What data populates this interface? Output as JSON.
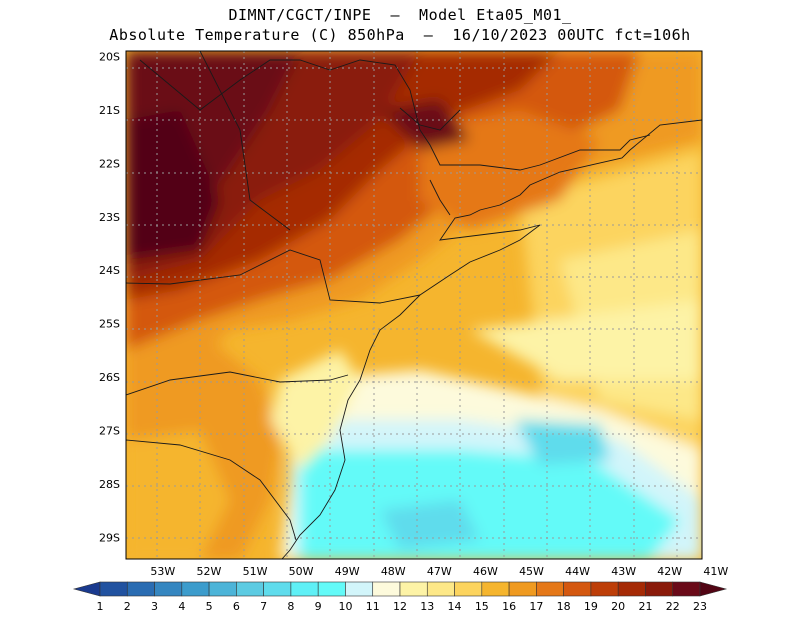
{
  "header": {
    "line1": "DIMNT/CGCT/INPE  –  Model Eta05_M01_",
    "line2": "Absolute Temperature (C) 850hPa  –  16/10/2023 00UTC fct=106h"
  },
  "map": {
    "lat_labels": [
      "20S",
      "21S",
      "22S",
      "23S",
      "24S",
      "25S",
      "26S",
      "27S",
      "28S",
      "29S"
    ],
    "lon_labels": [
      "53W",
      "52W",
      "51W",
      "50W",
      "49W",
      "48W",
      "47W",
      "46W",
      "45W",
      "44W",
      "43W",
      "42W",
      "41W"
    ],
    "lat_range": [
      -29.4,
      -19.9
    ],
    "lon_range": [
      -53.8,
      -41.3
    ]
  },
  "colorbar": {
    "labels": [
      "1",
      "2",
      "3",
      "4",
      "5",
      "6",
      "7",
      "8",
      "9",
      "10",
      "11",
      "12",
      "13",
      "14",
      "15",
      "16",
      "17",
      "18",
      "19",
      "20",
      "21",
      "22",
      "23"
    ],
    "colors": [
      "#1a3a8e",
      "#2152a0",
      "#2a6cb2",
      "#3586c0",
      "#3c9ccc",
      "#4cb4d8",
      "#5ccbe2",
      "#5fdcec",
      "#5ff0f6",
      "#63faf8",
      "#d2f5fa",
      "#fdfadc",
      "#fdf3a6",
      "#fde888",
      "#fcd45e",
      "#f5b52e",
      "#ef9a20",
      "#e57818",
      "#d45810",
      "#bd3e08",
      "#a52a05",
      "#8a1a0a",
      "#6a0a18",
      "#520514"
    ]
  }
}
